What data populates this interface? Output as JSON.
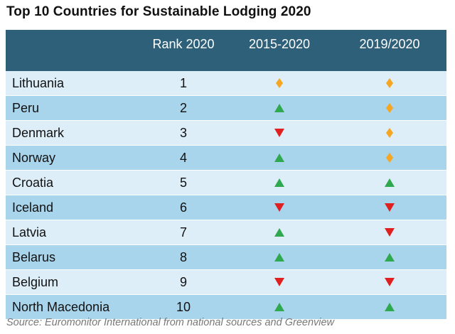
{
  "title": "Top 10 Countries for Sustainable Lodging 2020",
  "source": "Source: Euromonitor International from national sources and Greenview",
  "colors": {
    "header_bg": "#2e6079",
    "row_light": "#ddeef9",
    "row_dark": "#a8d4ec",
    "up": "#2fa84f",
    "down": "#e02020",
    "same": "#f5a623"
  },
  "chart_data": {
    "type": "table",
    "columns": [
      "",
      "Rank 2020",
      "2015-2020",
      "2019/2020"
    ],
    "rows": [
      {
        "country": "Lithuania",
        "rank": "1",
        "change_2015_2020": "same",
        "change_2019_2020": "same"
      },
      {
        "country": "Peru",
        "rank": "2",
        "change_2015_2020": "up",
        "change_2019_2020": "same"
      },
      {
        "country": "Denmark",
        "rank": "3",
        "change_2015_2020": "down",
        "change_2019_2020": "same"
      },
      {
        "country": "Norway",
        "rank": "4",
        "change_2015_2020": "up",
        "change_2019_2020": "same"
      },
      {
        "country": "Croatia",
        "rank": "5",
        "change_2015_2020": "up",
        "change_2019_2020": "up"
      },
      {
        "country": "Iceland",
        "rank": "6",
        "change_2015_2020": "down",
        "change_2019_2020": "down"
      },
      {
        "country": "Latvia",
        "rank": "7",
        "change_2015_2020": "up",
        "change_2019_2020": "down"
      },
      {
        "country": "Belarus",
        "rank": "8",
        "change_2015_2020": "up",
        "change_2019_2020": "up"
      },
      {
        "country": "Belgium",
        "rank": "9",
        "change_2015_2020": "down",
        "change_2019_2020": "down"
      },
      {
        "country": "North Macedonia",
        "rank": "10",
        "change_2015_2020": "up",
        "change_2019_2020": "up"
      }
    ]
  }
}
